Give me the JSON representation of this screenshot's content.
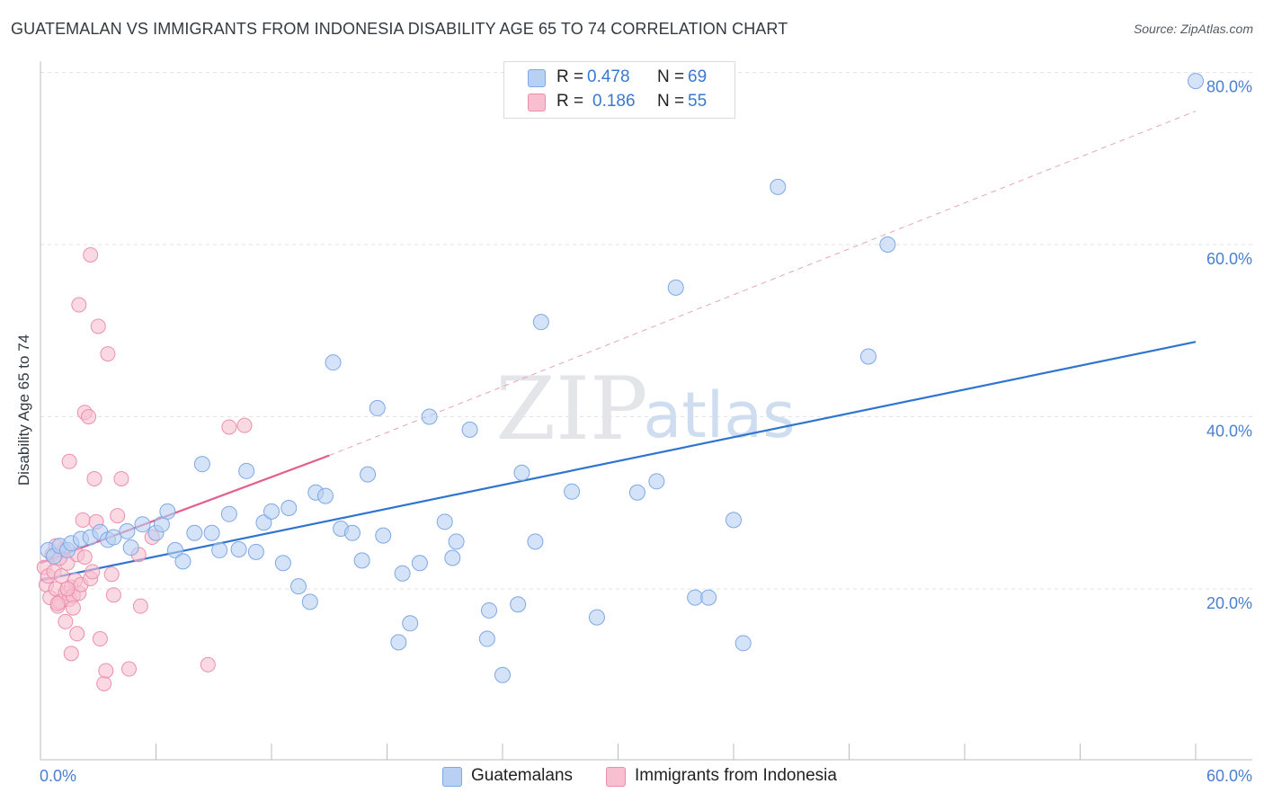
{
  "header": {
    "title": "GUATEMALAN VS IMMIGRANTS FROM INDONESIA DISABILITY AGE 65 TO 74 CORRELATION CHART",
    "source": "Source: ZipAtlas.com"
  },
  "watermark": {
    "zip": "ZIP",
    "atlas": "atlas"
  },
  "legend": {
    "series1": {
      "r_label": "R =",
      "r_value": "0.478",
      "n_label": "N =",
      "n_value": "69"
    },
    "series2": {
      "r_label": "R =",
      "r_value": "0.186",
      "n_label": "N =",
      "n_value": "55"
    }
  },
  "colors": {
    "blue_fill": "#b8d0f4",
    "blue_stroke": "#7ea8e6",
    "blue_line": "#2f75d0",
    "pink_fill": "#f7bfd0",
    "pink_stroke": "#ec8fae",
    "pink_line": "#e2608c",
    "grid": "#dfe2e6",
    "tick_text": "#4a7fd0"
  },
  "chart_data": {
    "type": "scatter",
    "title": "GUATEMALAN VS IMMIGRANTS FROM INDONESIA DISABILITY AGE 65 TO 74 CORRELATION CHART",
    "xlabel": "",
    "ylabel": "Disability Age 65 to 74",
    "xlim": [
      0,
      60
    ],
    "ylim": [
      0,
      80
    ],
    "x_tick_labels": [
      "0.0%",
      "60.0%"
    ],
    "y_ticks": [
      20,
      40,
      60,
      80
    ],
    "y_tick_labels": [
      "20.0%",
      "40.0%",
      "60.0%",
      "80.0%"
    ],
    "grid": true,
    "legend_position": "top-center",
    "series": [
      {
        "name": "Guatemalans",
        "color": "blue",
        "r": 0.478,
        "n": 69,
        "trend": [
          [
            0,
            21.0
          ],
          [
            60,
            48.7
          ]
        ],
        "points": [
          [
            0.4,
            24.5
          ],
          [
            0.7,
            23.8
          ],
          [
            1.0,
            25.0
          ],
          [
            1.4,
            24.5
          ],
          [
            1.6,
            25.3
          ],
          [
            2.1,
            25.8
          ],
          [
            2.6,
            26.0
          ],
          [
            3.1,
            26.6
          ],
          [
            3.5,
            25.7
          ],
          [
            3.8,
            26.0
          ],
          [
            4.5,
            26.7
          ],
          [
            4.7,
            24.8
          ],
          [
            5.3,
            27.5
          ],
          [
            6.0,
            26.5
          ],
          [
            6.3,
            27.5
          ],
          [
            6.6,
            29.0
          ],
          [
            7.0,
            24.5
          ],
          [
            7.4,
            23.2
          ],
          [
            8.0,
            26.5
          ],
          [
            8.4,
            34.5
          ],
          [
            8.9,
            26.5
          ],
          [
            9.3,
            24.5
          ],
          [
            9.8,
            28.7
          ],
          [
            10.3,
            24.6
          ],
          [
            10.7,
            33.7
          ],
          [
            11.2,
            24.3
          ],
          [
            11.6,
            27.7
          ],
          [
            12.0,
            29.0
          ],
          [
            12.6,
            23.0
          ],
          [
            12.9,
            29.4
          ],
          [
            13.4,
            20.3
          ],
          [
            14.0,
            18.5
          ],
          [
            14.3,
            31.2
          ],
          [
            14.8,
            30.8
          ],
          [
            15.2,
            46.3
          ],
          [
            15.6,
            27.0
          ],
          [
            16.2,
            26.5
          ],
          [
            16.7,
            23.3
          ],
          [
            17.0,
            33.3
          ],
          [
            17.5,
            41.0
          ],
          [
            17.8,
            26.2
          ],
          [
            18.6,
            13.8
          ],
          [
            18.8,
            21.8
          ],
          [
            19.2,
            16.0
          ],
          [
            19.7,
            23.0
          ],
          [
            20.2,
            40.0
          ],
          [
            21.0,
            27.8
          ],
          [
            21.4,
            23.6
          ],
          [
            21.6,
            25.5
          ],
          [
            22.3,
            38.5
          ],
          [
            23.3,
            17.5
          ],
          [
            23.2,
            14.2
          ],
          [
            24.0,
            10.0
          ],
          [
            24.8,
            18.2
          ],
          [
            25.0,
            33.5
          ],
          [
            25.7,
            25.5
          ],
          [
            26.0,
            51.0
          ],
          [
            27.6,
            31.3
          ],
          [
            28.9,
            16.7
          ],
          [
            31.0,
            31.2
          ],
          [
            32.0,
            32.5
          ],
          [
            33.0,
            55.0
          ],
          [
            34.0,
            19.0
          ],
          [
            34.7,
            19.0
          ],
          [
            36.0,
            28.0
          ],
          [
            36.5,
            13.7
          ],
          [
            38.3,
            66.7
          ],
          [
            43.0,
            47.0
          ],
          [
            44.0,
            60.0
          ],
          [
            60.0,
            79.0
          ]
        ]
      },
      {
        "name": "Immigrants from Indonesia",
        "color": "pink",
        "r": 0.186,
        "n": 55,
        "trend": [
          [
            0,
            23.0
          ],
          [
            15,
            35.5
          ]
        ],
        "trend_extension": [
          [
            15,
            35.5
          ],
          [
            60,
            75.5
          ]
        ],
        "points": [
          [
            0.2,
            22.5
          ],
          [
            0.3,
            20.5
          ],
          [
            0.4,
            21.5
          ],
          [
            0.5,
            19.0
          ],
          [
            0.6,
            24.0
          ],
          [
            0.7,
            22.0
          ],
          [
            0.8,
            20.0
          ],
          [
            0.9,
            18.0
          ],
          [
            1.0,
            18.5
          ],
          [
            1.1,
            21.5
          ],
          [
            1.2,
            24.5
          ],
          [
            1.3,
            19.5
          ],
          [
            1.4,
            23.0
          ],
          [
            1.5,
            18.8
          ],
          [
            1.6,
            20.2
          ],
          [
            1.7,
            19.2
          ],
          [
            1.8,
            21.0
          ],
          [
            1.9,
            24.0
          ],
          [
            2.0,
            19.5
          ],
          [
            2.1,
            20.5
          ],
          [
            1.3,
            16.2
          ],
          [
            1.6,
            12.5
          ],
          [
            1.9,
            14.8
          ],
          [
            2.2,
            28.0
          ],
          [
            2.3,
            40.5
          ],
          [
            2.5,
            40.0
          ],
          [
            2.6,
            58.8
          ],
          [
            2.0,
            53.0
          ],
          [
            2.8,
            32.8
          ],
          [
            2.9,
            27.8
          ],
          [
            2.6,
            21.2
          ],
          [
            2.7,
            22.0
          ],
          [
            3.0,
            50.5
          ],
          [
            3.1,
            14.2
          ],
          [
            3.3,
            9.0
          ],
          [
            3.4,
            10.5
          ],
          [
            3.5,
            47.3
          ],
          [
            1.5,
            34.8
          ],
          [
            4.0,
            28.5
          ],
          [
            4.2,
            32.8
          ],
          [
            4.6,
            10.7
          ],
          [
            5.1,
            24.0
          ],
          [
            5.2,
            18.0
          ],
          [
            5.8,
            26.0
          ],
          [
            8.7,
            11.2
          ],
          [
            9.8,
            38.8
          ],
          [
            10.6,
            39.0
          ],
          [
            0.8,
            25.0
          ],
          [
            1.0,
            23.6
          ],
          [
            0.9,
            18.3
          ],
          [
            1.4,
            20.0
          ],
          [
            1.7,
            17.8
          ],
          [
            2.3,
            23.7
          ],
          [
            3.7,
            21.7
          ],
          [
            3.8,
            19.3
          ]
        ]
      }
    ]
  },
  "bottom_legend": {
    "items": [
      {
        "label": "Guatemalans"
      },
      {
        "label": "Immigrants from Indonesia"
      }
    ]
  }
}
